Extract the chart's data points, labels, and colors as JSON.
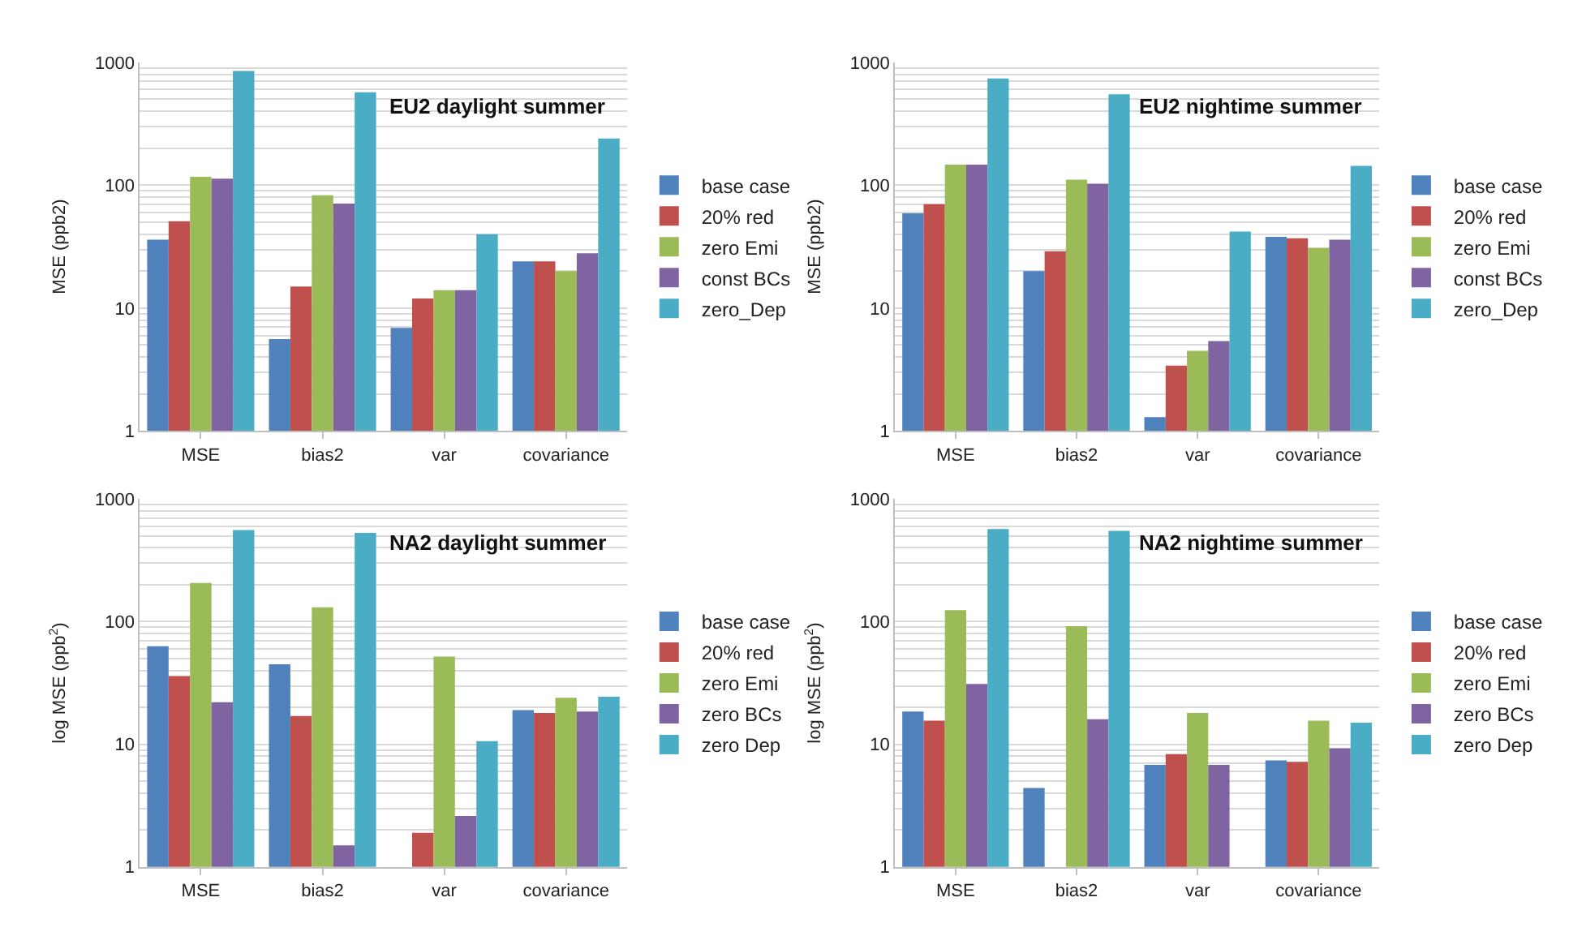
{
  "chart_data": [
    {
      "type": "bar",
      "title": "EU2 daylight summer",
      "ylabel": "MSE (ppb2)",
      "categories": [
        "MSE",
        "bias2",
        "var",
        "covariance"
      ],
      "log": true,
      "ylim": [
        1,
        1000
      ],
      "yticks": [
        1,
        {
          "value": 2,
          "label": null
        },
        {
          "value": 3,
          "label": null
        },
        {
          "value": 4,
          "label": null
        },
        {
          "value": 5,
          "label": null
        },
        {
          "value": 6,
          "label": null
        },
        {
          "value": 7,
          "label": null
        },
        {
          "value": 8,
          "label": null
        },
        {
          "value": 9,
          "label": null
        },
        10,
        {
          "value": 20,
          "label": null
        },
        {
          "value": 30,
          "label": null
        },
        {
          "value": 40,
          "label": null
        },
        {
          "value": 50,
          "label": null
        },
        {
          "value": 60,
          "label": null
        },
        {
          "value": 70,
          "label": null
        },
        {
          "value": 80,
          "label": null
        },
        {
          "value": 90,
          "label": null
        },
        100,
        {
          "value": 200,
          "label": null
        },
        {
          "value": 300,
          "label": null
        },
        {
          "value": 400,
          "label": null
        },
        {
          "value": 500,
          "label": null
        },
        {
          "value": 600,
          "label": null
        },
        {
          "value": 700,
          "label": null
        },
        {
          "value": 800,
          "label": null
        },
        {
          "value": 900,
          "label": null
        },
        1000
      ],
      "grid": "y",
      "legend": "right",
      "series": [
        {
          "name": "base case",
          "color": "#4f81bd",
          "values": [
            36,
            5.6,
            6.9,
            24
          ]
        },
        {
          "name": "20% red",
          "color": "#c0504d",
          "values": [
            51,
            15,
            12,
            24
          ]
        },
        {
          "name": "zero Emi",
          "color": "#9bbb59",
          "values": [
            117,
            83,
            14,
            20
          ]
        },
        {
          "name": "const BCs",
          "color": "#8064a2",
          "values": [
            113,
            71,
            14,
            28
          ]
        },
        {
          "name": "zero_Dep",
          "color": "#4bacc6",
          "values": [
            850,
            570,
            40,
            240
          ]
        }
      ]
    },
    {
      "type": "bar",
      "title": "EU2 nightime summer",
      "ylabel": "MSE (ppb2)",
      "categories": [
        "MSE",
        "bias2",
        "var",
        "covariance"
      ],
      "log": true,
      "ylim": [
        1,
        1000
      ],
      "yticks": [
        1,
        {
          "value": 2,
          "label": null
        },
        {
          "value": 3,
          "label": null
        },
        {
          "value": 4,
          "label": null
        },
        {
          "value": 5,
          "label": null
        },
        {
          "value": 6,
          "label": null
        },
        {
          "value": 7,
          "label": null
        },
        {
          "value": 8,
          "label": null
        },
        {
          "value": 9,
          "label": null
        },
        10,
        {
          "value": 20,
          "label": null
        },
        {
          "value": 30,
          "label": null
        },
        {
          "value": 40,
          "label": null
        },
        {
          "value": 50,
          "label": null
        },
        {
          "value": 60,
          "label": null
        },
        {
          "value": 70,
          "label": null
        },
        {
          "value": 80,
          "label": null
        },
        {
          "value": 90,
          "label": null
        },
        100,
        {
          "value": 200,
          "label": null
        },
        {
          "value": 300,
          "label": null
        },
        {
          "value": 400,
          "label": null
        },
        {
          "value": 500,
          "label": null
        },
        {
          "value": 600,
          "label": null
        },
        {
          "value": 700,
          "label": null
        },
        {
          "value": 800,
          "label": null
        },
        {
          "value": 900,
          "label": null
        },
        1000
      ],
      "grid": "y",
      "legend": "right",
      "series": [
        {
          "name": "base case",
          "color": "#4f81bd",
          "values": [
            59,
            20,
            1.3,
            38
          ]
        },
        {
          "name": "20% red",
          "color": "#c0504d",
          "values": [
            70,
            29,
            3.4,
            37
          ]
        },
        {
          "name": "zero Emi",
          "color": "#9bbb59",
          "values": [
            147,
            111,
            4.5,
            31
          ]
        },
        {
          "name": "const BCs",
          "color": "#8064a2",
          "values": [
            147,
            103,
            5.4,
            36
          ]
        },
        {
          "name": "zero_Dep",
          "color": "#4bacc6",
          "values": [
            740,
            550,
            42,
            144
          ]
        }
      ]
    },
    {
      "type": "bar",
      "title": "NA2 daylight summer",
      "ylabel": "log MSE (ppb$^{2}$)",
      "categories": [
        "MSE",
        "bias2",
        "var",
        "covariance"
      ],
      "log": true,
      "ylim": [
        1,
        1000
      ],
      "yticks": [
        1,
        {
          "value": 2,
          "label": null
        },
        {
          "value": 3,
          "label": null
        },
        {
          "value": 4,
          "label": null
        },
        {
          "value": 5,
          "label": null
        },
        {
          "value": 6,
          "label": null
        },
        {
          "value": 7,
          "label": null
        },
        {
          "value": 8,
          "label": null
        },
        {
          "value": 9,
          "label": null
        },
        10,
        {
          "value": 20,
          "label": null
        },
        {
          "value": 30,
          "label": null
        },
        {
          "value": 40,
          "label": null
        },
        {
          "value": 50,
          "label": null
        },
        {
          "value": 60,
          "label": null
        },
        {
          "value": 70,
          "label": null
        },
        {
          "value": 80,
          "label": null
        },
        {
          "value": 90,
          "label": null
        },
        100,
        {
          "value": 200,
          "label": null
        },
        {
          "value": 300,
          "label": null
        },
        {
          "value": 400,
          "label": null
        },
        {
          "value": 500,
          "label": null
        },
        {
          "value": 600,
          "label": null
        },
        {
          "value": 700,
          "label": null
        },
        {
          "value": 800,
          "label": null
        },
        {
          "value": 900,
          "label": null
        },
        1000
      ],
      "grid": "y",
      "legend": "right",
      "series": [
        {
          "name": "base case",
          "color": "#4f81bd",
          "values": [
            63,
            45,
            null,
            19
          ]
        },
        {
          "name": "20% red",
          "color": "#c0504d",
          "values": [
            36,
            17,
            1.9,
            18
          ]
        },
        {
          "name": "zero Emi",
          "color": "#9bbb59",
          "values": [
            207,
            131,
            52,
            24
          ]
        },
        {
          "name": "zero BCs",
          "color": "#8064a2",
          "values": [
            22,
            1.5,
            2.6,
            18.5
          ]
        },
        {
          "name": "zero Dep",
          "color": "#4bacc6",
          "values": [
            560,
            530,
            10.6,
            24.4
          ]
        }
      ]
    },
    {
      "type": "bar",
      "title": "NA2 nightime summer",
      "ylabel": "log MSE (ppb$^{2}$)",
      "categories": [
        "MSE",
        "bias2",
        "var",
        "covariance"
      ],
      "log": true,
      "ylim": [
        1,
        1000
      ],
      "yticks": [
        1,
        {
          "value": 2,
          "label": null
        },
        {
          "value": 3,
          "label": null
        },
        {
          "value": 4,
          "label": null
        },
        {
          "value": 5,
          "label": null
        },
        {
          "value": 6,
          "label": null
        },
        {
          "value": 7,
          "label": null
        },
        {
          "value": 8,
          "label": null
        },
        {
          "value": 9,
          "label": null
        },
        10,
        {
          "value": 20,
          "label": null
        },
        {
          "value": 30,
          "label": null
        },
        {
          "value": 40,
          "label": null
        },
        {
          "value": 50,
          "label": null
        },
        {
          "value": 60,
          "label": null
        },
        {
          "value": 70,
          "label": null
        },
        {
          "value": 80,
          "label": null
        },
        {
          "value": 90,
          "label": null
        },
        100,
        {
          "value": 200,
          "label": null
        },
        {
          "value": 300,
          "label": null
        },
        {
          "value": 400,
          "label": null
        },
        {
          "value": 500,
          "label": null
        },
        {
          "value": 600,
          "label": null
        },
        {
          "value": 700,
          "label": null
        },
        {
          "value": 800,
          "label": null
        },
        {
          "value": 900,
          "label": null
        },
        1000
      ],
      "grid": "y",
      "legend": "right",
      "series": [
        {
          "name": "base case",
          "color": "#4f81bd",
          "values": [
            18.5,
            4.4,
            6.8,
            7.4
          ]
        },
        {
          "name": "20% red",
          "color": "#c0504d",
          "values": [
            15.6,
            null,
            8.3,
            7.2
          ]
        },
        {
          "name": "zero Emi",
          "color": "#9bbb59",
          "values": [
            124,
            92,
            18,
            15.6
          ]
        },
        {
          "name": "zero BCs",
          "color": "#8064a2",
          "values": [
            31,
            16,
            6.8,
            9.3
          ]
        },
        {
          "name": "zero Dep",
          "color": "#4bacc6",
          "values": [
            570,
            550,
            null,
            15
          ]
        }
      ]
    }
  ]
}
